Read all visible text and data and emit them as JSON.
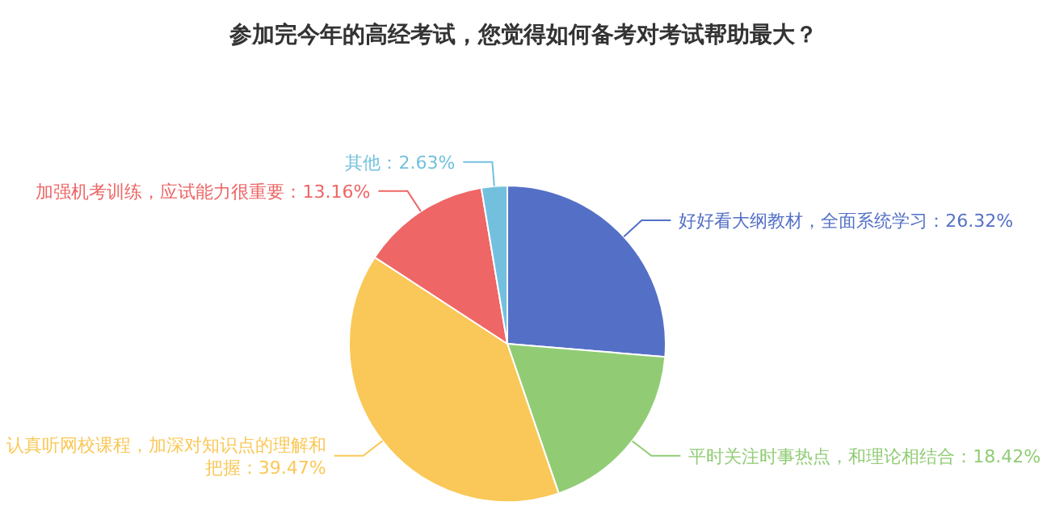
{
  "chart_data": {
    "type": "pie",
    "title": "参加完今年的高经考试，您觉得如何备考对考试帮助最大？",
    "categories": [
      "好好看大纲教材，全面系统学习",
      "平时关注时事热点，和理论相结合",
      "认真听网校课程，加深对知识点的理解和把握",
      "加强机考训练，应试能力很重要",
      "其他"
    ],
    "values": [
      26.32,
      18.42,
      39.47,
      13.16,
      2.63
    ],
    "value_labels": [
      "26.32%",
      "18.42%",
      "39.47%",
      "13.16%",
      "2.63%"
    ],
    "colors": [
      "#5470c6",
      "#91cc75",
      "#fac858",
      "#ee6666",
      "#73c0de"
    ],
    "legend": false
  }
}
